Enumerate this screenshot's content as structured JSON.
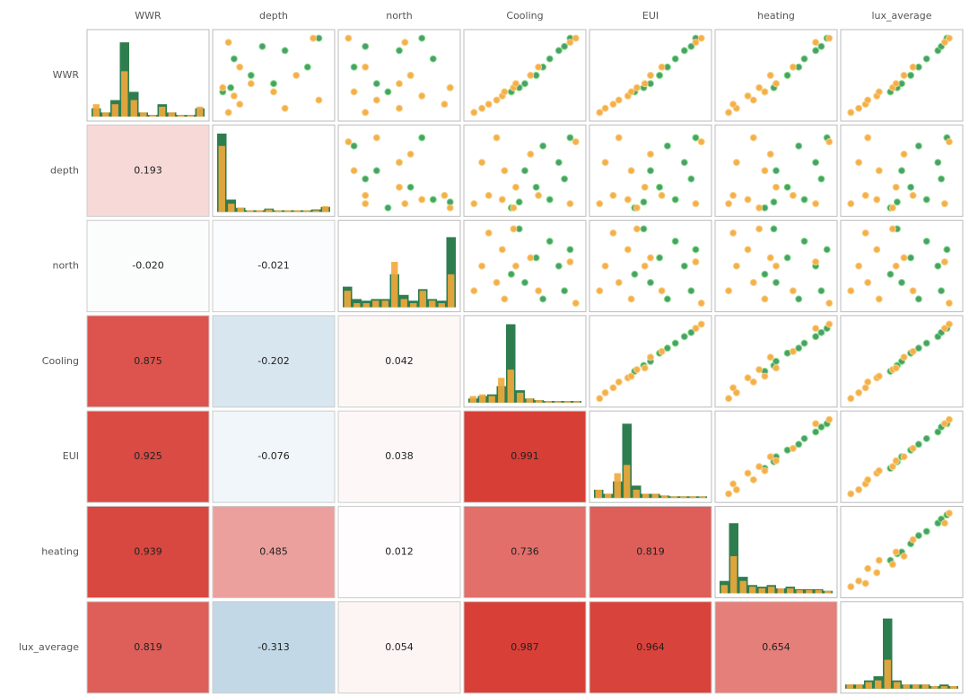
{
  "chart_data": {
    "type": "pairplot",
    "variables": [
      "WWR",
      "depth",
      "north",
      "Cooling",
      "EUI",
      "heating",
      "lux_average"
    ],
    "positive_color": "#d73c34",
    "negative_color": "#3c82af",
    "correlations": [
      [],
      [
        0.193
      ],
      [
        {
          "value": -0.02,
          "label": "-0.020"
        },
        -0.021
      ],
      [
        0.875,
        -0.202,
        0.042
      ],
      [
        0.925,
        -0.076,
        0.038,
        0.991
      ],
      [
        0.939,
        0.485,
        0.012,
        0.736,
        0.819
      ],
      [
        0.819,
        -0.313,
        0.054,
        0.987,
        0.964,
        0.654
      ]
    ],
    "groups": [
      {
        "color": "#2e7d4f",
        "point_color": "#4c9e6e",
        "point_stroke": "#7fe07f",
        "hist": [
          [
            0.1,
            0.05,
            0.2,
            0.9,
            0.3,
            0.05,
            0.02,
            0.15,
            0.05,
            0.02,
            0.02,
            0.1
          ],
          [
            0.95,
            0.15,
            0.05,
            0.02,
            0.02,
            0.04,
            0.02,
            0.02,
            0.02,
            0.02,
            0.03,
            0.06
          ],
          [
            0.25,
            0.1,
            0.08,
            0.1,
            0.1,
            0.4,
            0.15,
            0.08,
            0.22,
            0.1,
            0.08,
            0.85
          ],
          [
            0.05,
            0.08,
            0.1,
            0.2,
            0.95,
            0.15,
            0.05,
            0.03,
            0.02,
            0.02,
            0.02,
            0.02
          ],
          [
            0.1,
            0.05,
            0.2,
            0.9,
            0.15,
            0.05,
            0.05,
            0.03,
            0.02,
            0.02,
            0.02,
            0.02
          ],
          [
            0.15,
            0.85,
            0.2,
            0.1,
            0.08,
            0.1,
            0.06,
            0.08,
            0.05,
            0.05,
            0.05,
            0.03
          ],
          [
            0.05,
            0.05,
            0.1,
            0.15,
            0.85,
            0.1,
            0.05,
            0.05,
            0.05,
            0.03,
            0.05,
            0.03
          ]
        ],
        "points": [
          [
            0.3,
            0.05,
            0.4,
            0.38,
            0.36,
            0.4,
            0.4
          ],
          [
            0.35,
            0.12,
            0.95,
            0.45,
            0.44,
            0.48,
            0.46
          ],
          [
            0.4,
            0.5,
            0.3,
            0.5,
            0.5,
            0.5,
            0.5
          ],
          [
            0.5,
            0.3,
            0.6,
            0.6,
            0.58,
            0.6,
            0.58
          ],
          [
            0.6,
            0.8,
            0.1,
            0.66,
            0.65,
            0.7,
            0.65
          ],
          [
            0.7,
            0.15,
            0.8,
            0.72,
            0.72,
            0.75,
            0.72
          ],
          [
            0.8,
            0.6,
            0.5,
            0.8,
            0.8,
            0.85,
            0.82
          ],
          [
            0.85,
            0.4,
            0.2,
            0.85,
            0.86,
            0.9,
            0.85
          ],
          [
            0.95,
            0.9,
            0.7,
            0.9,
            0.9,
            0.95,
            0.9
          ]
        ]
      },
      {
        "color": "#f2a93b",
        "point_color": "#f4b048",
        "point_stroke": "#f8cf8a",
        "hist": [
          [
            0.15,
            0.05,
            0.15,
            0.55,
            0.2,
            0.05,
            0.02,
            0.12,
            0.05,
            0.02,
            0.02,
            0.12
          ],
          [
            0.8,
            0.1,
            0.05,
            0.02,
            0.02,
            0.03,
            0.02,
            0.02,
            0.02,
            0.02,
            0.02,
            0.07
          ],
          [
            0.2,
            0.05,
            0.05,
            0.08,
            0.08,
            0.55,
            0.1,
            0.05,
            0.2,
            0.08,
            0.05,
            0.4
          ],
          [
            0.08,
            0.1,
            0.08,
            0.3,
            0.4,
            0.12,
            0.05,
            0.03,
            0.02,
            0.02,
            0.02,
            0.02
          ],
          [
            0.1,
            0.05,
            0.3,
            0.4,
            0.1,
            0.05,
            0.05,
            0.03,
            0.02,
            0.02,
            0.02,
            0.02
          ],
          [
            0.1,
            0.45,
            0.15,
            0.08,
            0.06,
            0.08,
            0.06,
            0.06,
            0.04,
            0.04,
            0.04,
            0.03
          ],
          [
            0.05,
            0.05,
            0.08,
            0.1,
            0.35,
            0.08,
            0.05,
            0.05,
            0.05,
            0.03,
            0.03,
            0.03
          ]
        ],
        "points": [
          [
            0.05,
            0.1,
            0.2,
            0.05,
            0.05,
            0.08,
            0.05
          ],
          [
            0.1,
            0.6,
            0.5,
            0.12,
            0.1,
            0.15,
            0.12
          ],
          [
            0.15,
            0.2,
            0.9,
            0.18,
            0.17,
            0.12,
            0.18
          ],
          [
            0.2,
            0.9,
            0.3,
            0.25,
            0.22,
            0.3,
            0.2
          ],
          [
            0.25,
            0.15,
            0.7,
            0.3,
            0.3,
            0.25,
            0.28
          ],
          [
            0.3,
            0.5,
            0.1,
            0.32,
            0.33,
            0.4,
            0.3
          ],
          [
            0.35,
            0.05,
            0.95,
            0.4,
            0.38,
            0.35,
            0.42
          ],
          [
            0.4,
            0.3,
            0.5,
            0.42,
            0.45,
            0.5,
            0.45
          ],
          [
            0.5,
            0.7,
            0.6,
            0.55,
            0.5,
            0.45,
            0.52
          ],
          [
            0.6,
            0.2,
            0.2,
            0.62,
            0.6,
            0.65,
            0.6
          ],
          [
            0.95,
            0.85,
            0.05,
            0.95,
            0.95,
            0.97,
            0.92
          ],
          [
            0.9,
            0.1,
            0.55,
            0.9,
            0.9,
            0.85,
            0.88
          ]
        ]
      }
    ]
  }
}
